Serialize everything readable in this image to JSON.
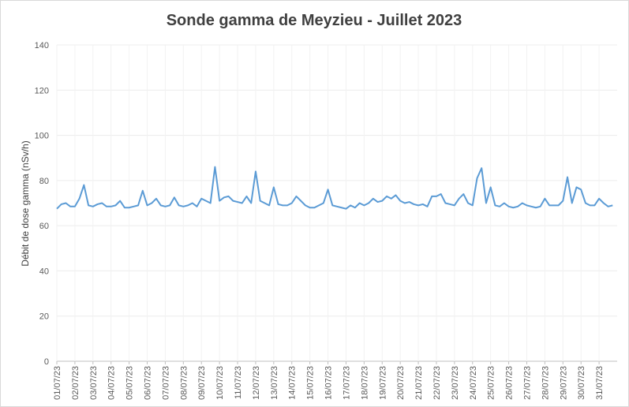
{
  "chart_data": {
    "type": "line",
    "title": "Sonde gamma de Meyzieu - Juillet 2023",
    "ylabel": "Débit de dose gamma (nSv/h)",
    "categories": [
      "01/07/23",
      null,
      null,
      null,
      "02/07/23",
      null,
      null,
      null,
      "03/07/23",
      null,
      null,
      null,
      "04/07/23",
      null,
      null,
      null,
      "05/07/23",
      null,
      null,
      null,
      "06/07/23",
      null,
      null,
      null,
      "07/07/23",
      null,
      null,
      null,
      "08/07/23",
      null,
      null,
      null,
      "09/07/23",
      null,
      null,
      null,
      "10/07/23",
      null,
      null,
      null,
      "11/07/23",
      null,
      null,
      null,
      "12/07/23",
      null,
      null,
      null,
      "13/07/23",
      null,
      null,
      null,
      "14/07/23",
      null,
      null,
      null,
      "15/07/23",
      null,
      null,
      null,
      "16/07/23",
      null,
      null,
      null,
      "17/07/23",
      null,
      null,
      null,
      "18/07/23",
      null,
      null,
      null,
      "19/07/23",
      null,
      null,
      null,
      "20/07/23",
      null,
      null,
      null,
      "21/07/23",
      null,
      null,
      null,
      "22/07/23",
      null,
      null,
      null,
      "23/07/23",
      null,
      null,
      null,
      "24/07/23",
      null,
      null,
      null,
      "25/07/23",
      null,
      null,
      null,
      "26/07/23",
      null,
      null,
      null,
      "27/07/23",
      null,
      null,
      null,
      "28/07/23",
      null,
      null,
      null,
      "29/07/23",
      null,
      null,
      null,
      "30/07/23",
      null,
      null,
      null,
      "31/07/23",
      null,
      null,
      null
    ],
    "series": [
      {
        "name": "Débit de dose",
        "color": "#5b9bd5",
        "values": [
          67.5,
          69.5,
          70,
          68.5,
          68.5,
          72,
          78,
          69,
          68.5,
          69.5,
          70,
          68.5,
          68.5,
          69,
          71,
          68,
          68,
          68.5,
          69,
          75.5,
          69,
          70,
          72,
          69,
          68.5,
          69,
          72.5,
          69,
          68.5,
          69,
          70,
          68.5,
          72,
          71,
          70,
          86,
          71,
          72.5,
          73,
          71,
          70.5,
          70,
          73,
          70,
          84,
          71,
          70,
          69,
          77,
          69.5,
          69,
          69,
          70,
          73,
          71,
          69,
          68,
          68,
          69,
          70,
          76,
          69,
          68.5,
          68,
          67.5,
          69,
          68,
          70,
          69,
          70,
          72,
          70.5,
          71,
          73,
          72,
          73.5,
          71,
          70,
          70.5,
          69.5,
          69,
          69.5,
          68.5,
          73,
          73,
          74,
          70,
          69.5,
          69,
          72,
          74,
          70,
          69,
          81,
          85.5,
          70,
          77,
          69,
          68.5,
          70,
          68.5,
          68,
          68.5,
          70,
          69,
          68.5,
          68,
          68.5,
          72,
          69,
          69,
          69,
          71,
          81.5,
          70,
          77,
          76,
          70,
          69,
          69,
          72,
          70,
          68.5,
          69
        ]
      }
    ],
    "ylim": [
      0,
      140
    ],
    "yticks": [
      0,
      20,
      40,
      60,
      80,
      100,
      120,
      140
    ],
    "grid": true
  }
}
